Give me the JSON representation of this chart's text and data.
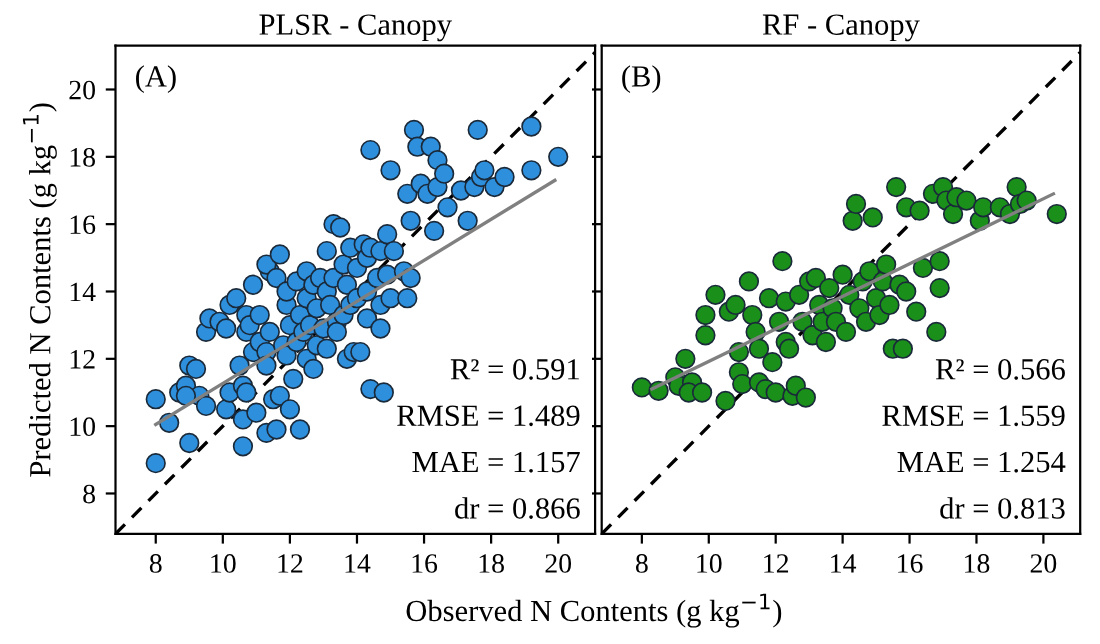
{
  "chart_data": [
    {
      "type": "scatter",
      "title": "PLSR - Canopy",
      "ylabel": "Predicted N Contents (g kg$^{−1}$)",
      "xlabel": "Observed N Contents (g kg$^{−1}$)",
      "xlim": [
        6.8,
        21.1
      ],
      "ylim": [
        6.8,
        21.3
      ],
      "xticks": [
        8,
        10,
        12,
        14,
        16,
        18,
        20
      ],
      "yticks": [
        8,
        10,
        12,
        14,
        16,
        18,
        20
      ],
      "grid": false,
      "legend": false,
      "annotations": [
        "(A)",
        "R² = 0.591",
        "RMSE = 1.489",
        "MAE = 1.157",
        "dr = 0.866"
      ],
      "series": [
        {
          "marker": "circle",
          "color": "#2e8fdc",
          "x": [
            8.0,
            8.0,
            8.4,
            8.7,
            8.9,
            9.0,
            9.2,
            9.0,
            9.3,
            8.9,
            9.5,
            9.5,
            9.6,
            9.9,
            10.1,
            10.1,
            10.2,
            10.2,
            10.4,
            10.5,
            10.6,
            10.6,
            10.6,
            10.7,
            10.7,
            10.7,
            10.8,
            10.9,
            11.0,
            11.1,
            11.1,
            10.9,
            11.3,
            11.3,
            11.3,
            11.4,
            11.5,
            11.4,
            11.3,
            11.6,
            11.7,
            11.6,
            11.7,
            11.8,
            11.9,
            11.9,
            11.9,
            12.0,
            12.0,
            12.1,
            12.2,
            12.2,
            12.3,
            12.3,
            12.4,
            12.5,
            12.5,
            12.5,
            12.6,
            12.7,
            12.7,
            12.8,
            12.8,
            12.9,
            13.0,
            13.1,
            13.1,
            13.1,
            13.2,
            13.3,
            13.3,
            13.4,
            13.4,
            13.5,
            13.6,
            13.6,
            13.7,
            13.7,
            13.8,
            13.8,
            13.9,
            14.0,
            14.0,
            14.1,
            14.2,
            14.3,
            14.3,
            14.3,
            14.4,
            14.4,
            14.4,
            14.6,
            14.7,
            14.7,
            14.7,
            14.8,
            14.9,
            14.9,
            15.0,
            15.0,
            15.1,
            15.4,
            15.5,
            15.5,
            15.6,
            15.6,
            15.7,
            15.8,
            15.9,
            16.1,
            16.2,
            16.3,
            16.4,
            16.4,
            16.6,
            16.7,
            17.1,
            17.3,
            17.5,
            17.6,
            17.7,
            17.8,
            18.1,
            18.4,
            19.2,
            19.2,
            20.0
          ],
          "values": [
            10.8,
            8.9,
            10.1,
            11.0,
            11.2,
            11.8,
            11.7,
            9.5,
            10.9,
            10.9,
            10.6,
            12.8,
            13.2,
            13.1,
            12.9,
            10.5,
            11.0,
            13.6,
            13.8,
            11.8,
            11.2,
            10.2,
            9.4,
            13.3,
            12.8,
            11.0,
            13.0,
            12.2,
            10.4,
            13.3,
            12.5,
            14.2,
            9.8,
            12.2,
            11.8,
            12.8,
            10.8,
            14.6,
            14.8,
            14.4,
            15.1,
            9.9,
            10.9,
            12.4,
            13.6,
            12.1,
            14.0,
            13.0,
            10.5,
            11.4,
            12.5,
            14.3,
            13.3,
            9.9,
            12.8,
            14.6,
            13.8,
            12.0,
            13.0,
            14.2,
            11.7,
            12.4,
            13.5,
            14.4,
            12.9,
            14.0,
            12.3,
            15.2,
            13.6,
            14.4,
            16.0,
            13.1,
            12.8,
            15.9,
            14.8,
            13.3,
            12.0,
            14.2,
            13.6,
            15.3,
            12.2,
            13.8,
            14.7,
            12.2,
            15.4,
            13.2,
            15.0,
            14.0,
            15.3,
            11.1,
            18.2,
            14.4,
            15.2,
            12.9,
            13.6,
            11.0,
            14.5,
            15.7,
            13.8,
            17.6,
            15.2,
            14.6,
            13.8,
            16.9,
            14.4,
            16.1,
            18.8,
            18.3,
            17.2,
            16.9,
            18.3,
            15.8,
            17.1,
            17.9,
            17.5,
            16.5,
            17.0,
            16.1,
            17.1,
            18.8,
            17.4,
            17.6,
            17.1,
            17.4,
            18.9,
            17.6,
            18.0
          ]
        },
        {
          "type": "line",
          "marker": "none",
          "color": "#808080",
          "line_style": "solid",
          "x": [
            8.0,
            19.9
          ],
          "values": [
            10.05,
            17.3
          ]
        },
        {
          "type": "line",
          "color": "#000000",
          "line_style": "dashed",
          "x": [
            6.8,
            21.1
          ],
          "values": [
            6.8,
            21.1
          ]
        }
      ]
    },
    {
      "type": "scatter",
      "title": "RF - Canopy",
      "xlim": [
        6.8,
        21.1
      ],
      "ylim": [
        6.8,
        21.3
      ],
      "xticks": [
        8,
        10,
        12,
        14,
        16,
        18,
        20
      ],
      "yticks": [
        8,
        10,
        12,
        14,
        16,
        18,
        20
      ],
      "tick_labels": "x",
      "grid": false,
      "legend": false,
      "annotations": [
        "(B)",
        "R² = 0.566",
        "RMSE = 1.559",
        "MAE = 1.254",
        "dr = 0.813"
      ],
      "series": [
        {
          "marker": "circle",
          "color": "#1a8f1a",
          "x": [
            8.0,
            8.5,
            9.0,
            9.3,
            9.1,
            9.5,
            9.4,
            9.8,
            9.9,
            9.9,
            10.2,
            10.5,
            10.6,
            10.8,
            10.9,
            10.9,
            11.0,
            11.2,
            11.3,
            11.4,
            11.5,
            11.5,
            11.7,
            11.8,
            11.9,
            12.0,
            12.1,
            12.2,
            12.3,
            12.3,
            12.4,
            12.5,
            12.6,
            12.7,
            12.8,
            12.9,
            13.0,
            13.1,
            13.2,
            13.3,
            13.4,
            13.5,
            13.6,
            13.7,
            13.8,
            14.0,
            14.1,
            14.2,
            14.3,
            14.4,
            14.5,
            14.6,
            14.7,
            14.8,
            14.9,
            15.0,
            15.1,
            15.2,
            15.3,
            15.4,
            15.5,
            15.6,
            15.7,
            15.8,
            15.9,
            15.9,
            16.2,
            16.3,
            16.4,
            16.7,
            16.9,
            16.9,
            16.8,
            17.0,
            17.1,
            17.3,
            17.4,
            17.7,
            18.1,
            18.2,
            18.7,
            19.0,
            19.2,
            19.3,
            19.5,
            20.4
          ],
          "values": [
            11.15,
            11.05,
            11.45,
            12.0,
            11.2,
            11.3,
            11.0,
            11.0,
            13.3,
            12.7,
            13.9,
            10.75,
            13.4,
            13.6,
            12.2,
            11.6,
            11.25,
            14.3,
            13.3,
            12.8,
            12.3,
            11.3,
            11.1,
            13.8,
            11.9,
            11.0,
            13.1,
            14.9,
            13.7,
            12.5,
            12.3,
            10.9,
            11.2,
            13.9,
            13.1,
            10.85,
            14.3,
            12.7,
            14.4,
            13.6,
            13.1,
            12.5,
            14.1,
            13.5,
            13.1,
            14.5,
            12.8,
            13.9,
            16.1,
            16.6,
            13.5,
            14.3,
            13.1,
            14.6,
            16.2,
            13.8,
            13.3,
            14.3,
            14.8,
            13.6,
            12.3,
            17.1,
            14.2,
            12.3,
            14.0,
            16.5,
            13.4,
            16.4,
            14.7,
            16.9,
            14.1,
            14.9,
            12.8,
            17.1,
            16.7,
            16.3,
            16.8,
            16.7,
            16.1,
            16.5,
            16.5,
            16.3,
            17.1,
            16.6,
            16.7,
            16.3
          ]
        },
        {
          "type": "line",
          "marker": "none",
          "color": "#808080",
          "line_style": "solid",
          "x": [
            8.3,
            20.3
          ],
          "values": [
            11.1,
            16.9
          ]
        },
        {
          "type": "line",
          "color": "#000000",
          "line_style": "dashed",
          "x": [
            6.8,
            21.1
          ],
          "values": [
            6.8,
            21.1
          ]
        }
      ]
    }
  ]
}
